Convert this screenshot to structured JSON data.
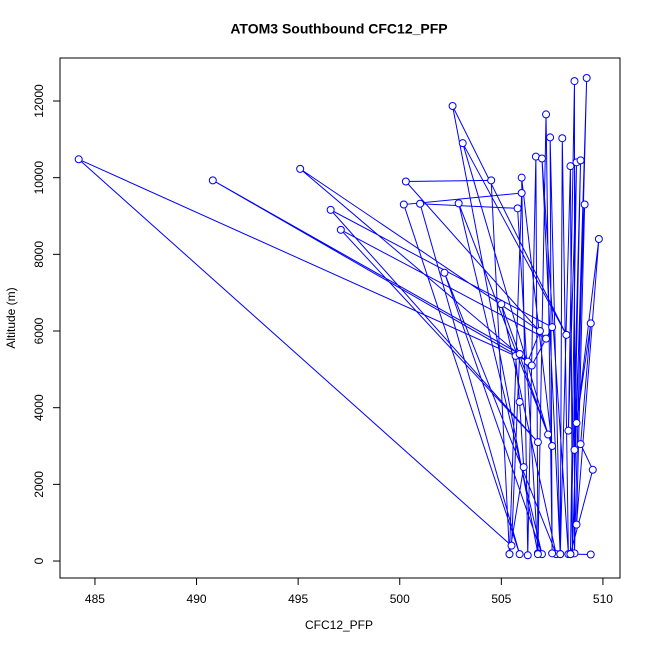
{
  "chart_data": {
    "type": "scatter-line",
    "title": "ATOM3 Southbound CFC12_PFP",
    "x_label": "CFC12_PFP",
    "y_label": "Altitude (m)",
    "color": "#0000ff",
    "xlim": [
      483.28,
      510.84
    ],
    "ylim": [
      -443,
      13122
    ],
    "xticks": [
      485,
      490,
      495,
      500,
      505,
      510
    ],
    "yticks": [
      0,
      2000,
      4000,
      6000,
      8000,
      10000,
      12000
    ],
    "x": [
      505.4,
      506.1,
      505.9,
      505.7,
      484.2,
      505.5,
      505.9,
      490.8,
      506.3,
      506.9,
      495.1,
      506.5,
      507.5,
      496.6,
      506.8,
      497.1,
      507.2,
      500.3,
      504.5,
      505.4,
      506.0,
      500.2,
      505.9,
      501.0,
      505.8,
      506.8,
      502.6,
      508.2,
      503.1,
      507.3,
      502.9,
      507.0,
      502.2,
      507.7,
      505.0,
      507.5,
      506.0,
      506.3,
      506.7,
      506.8,
      507.2,
      507.5,
      507.4,
      507.9,
      508.0,
      508.3,
      507.0,
      507.9,
      508.4,
      508.5,
      509.2,
      508.6,
      508.6,
      508.3,
      508.7,
      508.4,
      508.9,
      508.6,
      509.1,
      508.7,
      509.8,
      508.7,
      509.4,
      508.9,
      509.5,
      508.4,
      509.4
    ],
    "y": [
      180,
      2450,
      4150,
      5350,
      10480,
      400,
      5400,
      9930,
      5200,
      6000,
      10230,
      5100,
      6100,
      9160,
      3100,
      8640,
      5800,
      9900,
      9930,
      180,
      9600,
      9300,
      180,
      9320,
      9200,
      200,
      11870,
      5900,
      10900,
      3300,
      9330,
      180,
      7520,
      180,
      6700,
      3000,
      10000,
      150,
      10550,
      180,
      11650,
      200,
      11050,
      180,
      11030,
      180,
      10500,
      180,
      10300,
      200,
      12600,
      200,
      12520,
      3400,
      10400,
      180,
      10450,
      2900,
      9300,
      950,
      8400,
      3600,
      6200,
      3050,
      2380,
      180,
      170
    ]
  }
}
